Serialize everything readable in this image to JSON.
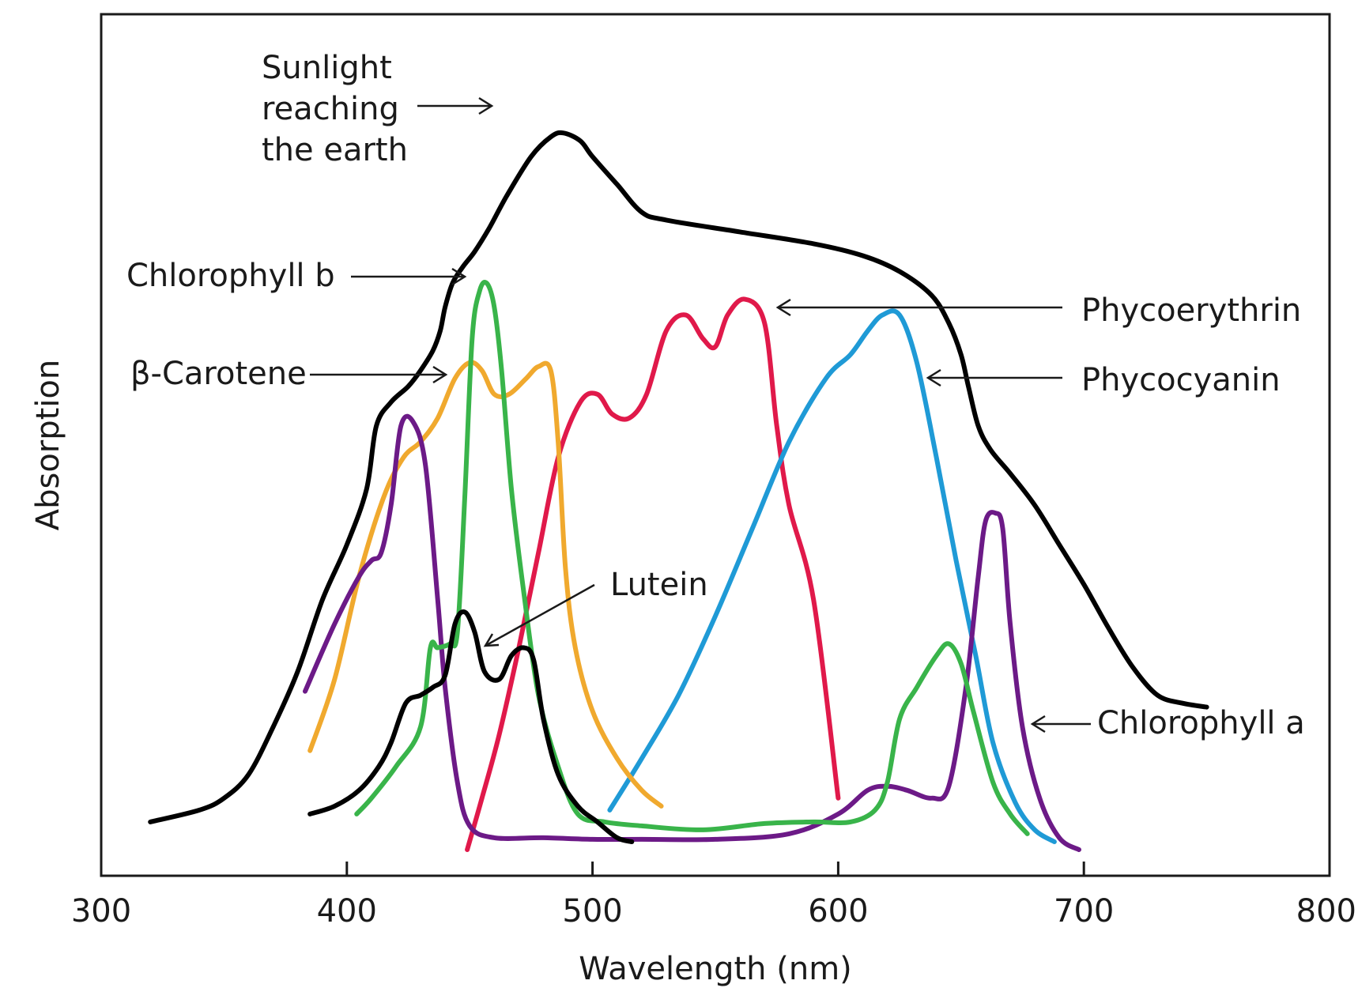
{
  "chart_data": {
    "type": "line",
    "title": "",
    "xlabel": "Wavelength (nm)",
    "ylabel": "Absorption",
    "xlim": [
      300,
      800
    ],
    "ylim": [
      0,
      100
    ],
    "x_ticks": [
      "300",
      "400",
      "500",
      "600",
      "700",
      "800"
    ],
    "grid": false,
    "legend": "none (curves labeled directly)",
    "series": [
      {
        "id": "sunlight",
        "color": "#000000",
        "label_lines": [
          "Sunlight",
          "reaching",
          "the earth"
        ],
        "points": [
          [
            320,
            5
          ],
          [
            340,
            6.5
          ],
          [
            350,
            8
          ],
          [
            360,
            11
          ],
          [
            370,
            17
          ],
          [
            380,
            24
          ],
          [
            390,
            33
          ],
          [
            400,
            40
          ],
          [
            408,
            47
          ],
          [
            412,
            55
          ],
          [
            418,
            58
          ],
          [
            425,
            60
          ],
          [
            430,
            62
          ],
          [
            435,
            64.5
          ],
          [
            438,
            67
          ],
          [
            440,
            70
          ],
          [
            443,
            73
          ],
          [
            447,
            75
          ],
          [
            452,
            77
          ],
          [
            458,
            80
          ],
          [
            465,
            84
          ],
          [
            475,
            89
          ],
          [
            483,
            91.5
          ],
          [
            488,
            92
          ],
          [
            495,
            91
          ],
          [
            500,
            89
          ],
          [
            510,
            85.5
          ],
          [
            520,
            82
          ],
          [
            530,
            81
          ],
          [
            560,
            79.5
          ],
          [
            590,
            78
          ],
          [
            610,
            76.5
          ],
          [
            625,
            74.5
          ],
          [
            638,
            71.5
          ],
          [
            645,
            68
          ],
          [
            650,
            64
          ],
          [
            653,
            60
          ],
          [
            657,
            55
          ],
          [
            662,
            52
          ],
          [
            670,
            49
          ],
          [
            680,
            45
          ],
          [
            690,
            40
          ],
          [
            700,
            35
          ],
          [
            710,
            29.5
          ],
          [
            720,
            24.5
          ],
          [
            730,
            21
          ],
          [
            740,
            20
          ],
          [
            750,
            19.5
          ]
        ]
      },
      {
        "id": "chlorophyll-b",
        "color": "#39b44a",
        "label": "Chlorophyll b",
        "points": [
          [
            404,
            6
          ],
          [
            410,
            8
          ],
          [
            420,
            12
          ],
          [
            430,
            17
          ],
          [
            434,
            27
          ],
          [
            437,
            27
          ],
          [
            442,
            27.5
          ],
          [
            445,
            29
          ],
          [
            448,
            46
          ],
          [
            451,
            66
          ],
          [
            454,
            72
          ],
          [
            457,
            73
          ],
          [
            460,
            70
          ],
          [
            463,
            62
          ],
          [
            467,
            47
          ],
          [
            472,
            34
          ],
          [
            478,
            21
          ],
          [
            486,
            12
          ],
          [
            494,
            6
          ],
          [
            505,
            5
          ],
          [
            520,
            4.5
          ],
          [
            545,
            4
          ],
          [
            570,
            4.8
          ],
          [
            590,
            5
          ],
          [
            605,
            5
          ],
          [
            615,
            6.5
          ],
          [
            620,
            10
          ],
          [
            625,
            18
          ],
          [
            632,
            22
          ],
          [
            640,
            26
          ],
          [
            645,
            27.5
          ],
          [
            650,
            25
          ],
          [
            655,
            19
          ],
          [
            663,
            10
          ],
          [
            670,
            6
          ],
          [
            677,
            3.5
          ]
        ]
      },
      {
        "id": "beta-carotene",
        "color": "#f0a92e",
        "label": "β-Carotene",
        "points": [
          [
            385,
            14
          ],
          [
            395,
            23
          ],
          [
            405,
            36
          ],
          [
            415,
            46
          ],
          [
            423,
            51
          ],
          [
            430,
            53
          ],
          [
            437,
            56
          ],
          [
            444,
            61
          ],
          [
            450,
            63
          ],
          [
            455,
            62
          ],
          [
            460,
            59
          ],
          [
            466,
            59
          ],
          [
            473,
            61
          ],
          [
            478,
            62.5
          ],
          [
            483,
            62
          ],
          [
            486,
            53
          ],
          [
            489,
            37
          ],
          [
            493,
            27
          ],
          [
            500,
            19
          ],
          [
            510,
            13
          ],
          [
            520,
            9
          ],
          [
            528,
            7
          ]
        ]
      },
      {
        "id": "phycoerythrin",
        "color": "#e0194a",
        "label": "Phycoerythrin",
        "points": [
          [
            449,
            1.5
          ],
          [
            455,
            8
          ],
          [
            462,
            16
          ],
          [
            470,
            27
          ],
          [
            478,
            39
          ],
          [
            486,
            51
          ],
          [
            495,
            58
          ],
          [
            502,
            59
          ],
          [
            508,
            56.5
          ],
          [
            515,
            56
          ],
          [
            522,
            59
          ],
          [
            530,
            67
          ],
          [
            538,
            69
          ],
          [
            545,
            66
          ],
          [
            550,
            65
          ],
          [
            555,
            69
          ],
          [
            562,
            71
          ],
          [
            570,
            68
          ],
          [
            575,
            55
          ],
          [
            580,
            45
          ],
          [
            590,
            33
          ],
          [
            600,
            8
          ]
        ]
      },
      {
        "id": "phycocyanin",
        "color": "#1f9ad6",
        "label": "Phycocyanin",
        "points": [
          [
            507,
            6.5
          ],
          [
            520,
            13
          ],
          [
            535,
            21
          ],
          [
            550,
            31
          ],
          [
            565,
            42
          ],
          [
            580,
            53
          ],
          [
            595,
            61
          ],
          [
            605,
            64
          ],
          [
            612,
            67
          ],
          [
            618,
            69
          ],
          [
            625,
            69
          ],
          [
            632,
            63
          ],
          [
            640,
            51
          ],
          [
            648,
            38
          ],
          [
            656,
            26
          ],
          [
            663,
            15
          ],
          [
            672,
            7.5
          ],
          [
            680,
            4
          ],
          [
            688,
            2.5
          ]
        ]
      },
      {
        "id": "chlorophyll-a",
        "color": "#6c1a87",
        "label": "Chlorophyll a",
        "points": [
          [
            383,
            21.5
          ],
          [
            395,
            30
          ],
          [
            405,
            36
          ],
          [
            410,
            38
          ],
          [
            414,
            39
          ],
          [
            418,
            45
          ],
          [
            422,
            55
          ],
          [
            427,
            55.5
          ],
          [
            432,
            50
          ],
          [
            437,
            33
          ],
          [
            440,
            22
          ],
          [
            445,
            10
          ],
          [
            450,
            4.5
          ],
          [
            460,
            3
          ],
          [
            480,
            3
          ],
          [
            500,
            2.8
          ],
          [
            520,
            2.8
          ],
          [
            550,
            2.8
          ],
          [
            580,
            3.5
          ],
          [
            600,
            6
          ],
          [
            612,
            9
          ],
          [
            620,
            9.5
          ],
          [
            628,
            9
          ],
          [
            638,
            8
          ],
          [
            645,
            9.5
          ],
          [
            652,
            22
          ],
          [
            657,
            36
          ],
          [
            660,
            43
          ],
          [
            664,
            44
          ],
          [
            667,
            42
          ],
          [
            670,
            30
          ],
          [
            675,
            17
          ],
          [
            682,
            8
          ],
          [
            690,
            3
          ],
          [
            698,
            1.5
          ]
        ]
      },
      {
        "id": "lutein",
        "color": "#000000",
        "label": "Lutein",
        "points": [
          [
            385,
            6
          ],
          [
            395,
            7
          ],
          [
            405,
            9
          ],
          [
            413,
            12
          ],
          [
            418,
            15
          ],
          [
            424,
            20
          ],
          [
            430,
            21
          ],
          [
            435,
            22
          ],
          [
            440,
            23.5
          ],
          [
            444,
            30
          ],
          [
            448,
            31.5
          ],
          [
            452,
            29
          ],
          [
            456,
            24
          ],
          [
            462,
            23
          ],
          [
            467,
            26
          ],
          [
            472,
            27
          ],
          [
            476,
            25.5
          ],
          [
            480,
            18
          ],
          [
            486,
            11
          ],
          [
            494,
            7
          ],
          [
            502,
            5
          ],
          [
            510,
            3
          ],
          [
            516,
            2.5
          ]
        ]
      }
    ]
  }
}
